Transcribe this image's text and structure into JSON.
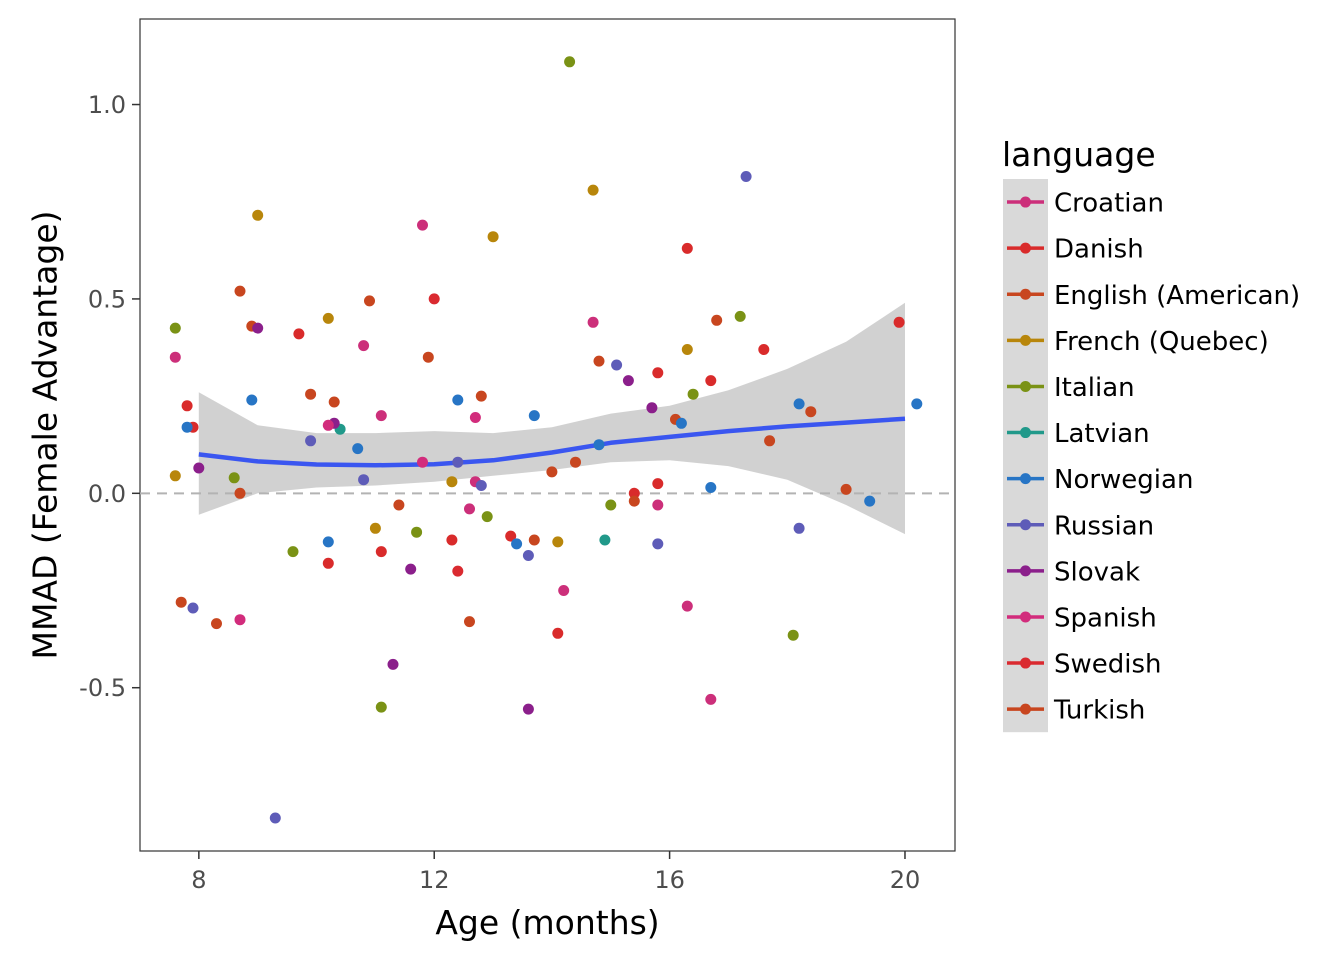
{
  "chart_data": {
    "type": "scatter",
    "xlabel": "Age (months)",
    "ylabel": "MMAD (Female Advantage)",
    "xlim": [
      7.0,
      20.85
    ],
    "ylim": [
      -0.92,
      1.22
    ],
    "x_ticks": [
      8,
      12,
      16,
      20
    ],
    "x_tick_labels": [
      "8",
      "12",
      "16",
      "20"
    ],
    "y_ticks": [
      -0.5,
      0.0,
      0.5,
      1.0
    ],
    "y_tick_labels": [
      "-0.5",
      "0.0",
      "0.5",
      "1.0"
    ],
    "grid": false,
    "reference_line": {
      "y": 0,
      "style": "dashed",
      "color": "#b3b3b3"
    },
    "legend": {
      "title": "language",
      "placement": "right",
      "entries": [
        {
          "name": "Croatian",
          "color": "#CC2F7A"
        },
        {
          "name": "Danish",
          "color": "#D92B2B"
        },
        {
          "name": "English (American)",
          "color": "#C8461F"
        },
        {
          "name": "French (Quebec)",
          "color": "#B8860B"
        },
        {
          "name": "Italian",
          "color": "#7A9215"
        },
        {
          "name": "Latvian",
          "color": "#21998A"
        },
        {
          "name": "Norwegian",
          "color": "#2775C5"
        },
        {
          "name": "Russian",
          "color": "#5E5CB8"
        },
        {
          "name": "Slovak",
          "color": "#8B1F8B"
        },
        {
          "name": "Spanish",
          "color": "#D22C7C"
        },
        {
          "name": "Swedish",
          "color": "#DA2A30"
        },
        {
          "name": "Turkish",
          "color": "#C8461F"
        }
      ]
    },
    "smooth": {
      "x": [
        8,
        9,
        10,
        11,
        12,
        13,
        14,
        15,
        16,
        17,
        18,
        19,
        20
      ],
      "y": [
        0.1,
        0.082,
        0.074,
        0.072,
        0.075,
        0.085,
        0.105,
        0.13,
        0.145,
        0.16,
        0.172,
        0.182,
        0.192
      ],
      "ci_lower": [
        -0.055,
        0.0,
        0.015,
        0.02,
        0.03,
        0.045,
        0.06,
        0.08,
        0.085,
        0.07,
        0.035,
        -0.03,
        -0.105
      ],
      "ci_upper": [
        0.26,
        0.175,
        0.155,
        0.155,
        0.16,
        0.155,
        0.17,
        0.205,
        0.225,
        0.265,
        0.32,
        0.39,
        0.49
      ],
      "line_color": "#3A56F0",
      "band_color": "#cccccc"
    },
    "series": [
      {
        "name": "Croatian",
        "color": "#CC2F7A",
        "points": [
          [
            7.6,
            0.35
          ],
          [
            10.8,
            0.38
          ],
          [
            11.1,
            0.2
          ],
          [
            11.8,
            0.69
          ],
          [
            12.6,
            -0.04
          ],
          [
            14.2,
            -0.25
          ],
          [
            14.7,
            0.44
          ],
          [
            15.8,
            -0.03
          ],
          [
            16.3,
            -0.29
          ],
          [
            16.7,
            -0.53
          ],
          [
            12.7,
            0.03
          ]
        ]
      },
      {
        "name": "Danish",
        "color": "#D92B2B",
        "points": [
          [
            7.8,
            0.225
          ],
          [
            7.9,
            0.17
          ],
          [
            9.7,
            0.41
          ],
          [
            10.2,
            -0.18
          ],
          [
            11.1,
            -0.15
          ],
          [
            12.3,
            -0.12
          ],
          [
            13.3,
            -0.11
          ],
          [
            14.1,
            -0.36
          ],
          [
            15.4,
            0.0
          ],
          [
            15.8,
            0.025
          ],
          [
            16.3,
            0.63
          ],
          [
            16.7,
            0.29
          ],
          [
            17.6,
            0.37
          ],
          [
            19.9,
            0.44
          ],
          [
            15.8,
            0.31
          ]
        ]
      },
      {
        "name": "English (American)",
        "color": "#C8461F",
        "points": [
          [
            7.7,
            -0.28
          ],
          [
            8.3,
            -0.335
          ],
          [
            8.7,
            0.52
          ],
          [
            8.9,
            0.43
          ],
          [
            10.3,
            0.235
          ],
          [
            10.9,
            0.495
          ],
          [
            11.4,
            -0.03
          ],
          [
            11.9,
            0.35
          ],
          [
            12.6,
            -0.33
          ],
          [
            12.8,
            0.25
          ],
          [
            13.7,
            -0.12
          ],
          [
            14.4,
            0.08
          ],
          [
            14.8,
            0.34
          ],
          [
            15.4,
            -0.02
          ],
          [
            16.1,
            0.19
          ],
          [
            16.8,
            0.445
          ],
          [
            18.4,
            0.21
          ],
          [
            14.0,
            0.055
          ]
        ]
      },
      {
        "name": "French (Quebec)",
        "color": "#B8860B",
        "points": [
          [
            7.6,
            0.045
          ],
          [
            9.0,
            0.715
          ],
          [
            10.2,
            0.45
          ],
          [
            11.0,
            -0.09
          ],
          [
            12.3,
            0.03
          ],
          [
            13.0,
            0.66
          ],
          [
            14.1,
            -0.125
          ],
          [
            14.7,
            0.78
          ],
          [
            16.3,
            0.37
          ]
        ]
      },
      {
        "name": "Italian",
        "color": "#7A9215",
        "points": [
          [
            7.6,
            0.425
          ],
          [
            8.6,
            0.04
          ],
          [
            9.6,
            -0.15
          ],
          [
            11.1,
            -0.55
          ],
          [
            11.7,
            -0.1
          ],
          [
            12.9,
            -0.06
          ],
          [
            14.3,
            1.11
          ],
          [
            15.0,
            -0.03
          ],
          [
            16.4,
            0.255
          ],
          [
            17.2,
            0.455
          ],
          [
            18.1,
            -0.365
          ]
        ]
      },
      {
        "name": "Latvian",
        "color": "#21998A",
        "points": [
          [
            10.4,
            0.165
          ],
          [
            14.9,
            -0.12
          ]
        ]
      },
      {
        "name": "Norwegian",
        "color": "#2775C5",
        "points": [
          [
            7.8,
            0.17
          ],
          [
            8.9,
            0.24
          ],
          [
            10.2,
            -0.125
          ],
          [
            10.7,
            0.115
          ],
          [
            12.4,
            0.24
          ],
          [
            13.4,
            -0.13
          ],
          [
            13.7,
            0.2
          ],
          [
            14.8,
            0.125
          ],
          [
            16.2,
            0.18
          ],
          [
            16.7,
            0.015
          ],
          [
            18.2,
            0.23
          ],
          [
            19.4,
            -0.02
          ],
          [
            20.2,
            0.23
          ]
        ]
      },
      {
        "name": "Russian",
        "color": "#5E5CB8",
        "points": [
          [
            7.9,
            -0.295
          ],
          [
            9.3,
            -0.835
          ],
          [
            9.9,
            0.135
          ],
          [
            10.8,
            0.035
          ],
          [
            12.4,
            0.08
          ],
          [
            12.8,
            0.02
          ],
          [
            13.6,
            -0.16
          ],
          [
            15.1,
            0.33
          ],
          [
            15.8,
            -0.13
          ],
          [
            17.3,
            0.815
          ],
          [
            18.2,
            -0.09
          ]
        ]
      },
      {
        "name": "Slovak",
        "color": "#8B1F8B",
        "points": [
          [
            8.0,
            0.065
          ],
          [
            9.0,
            0.425
          ],
          [
            10.3,
            0.18
          ],
          [
            11.3,
            -0.44
          ],
          [
            11.6,
            -0.195
          ],
          [
            13.6,
            -0.555
          ],
          [
            15.3,
            0.29
          ],
          [
            15.7,
            0.22
          ]
        ]
      },
      {
        "name": "Spanish",
        "color": "#D22C7C",
        "points": [
          [
            8.7,
            -0.325
          ],
          [
            10.2,
            0.175
          ],
          [
            11.8,
            0.08
          ],
          [
            12.7,
            0.195
          ]
        ]
      },
      {
        "name": "Swedish",
        "color": "#DA2A30",
        "points": [
          [
            12.0,
            0.5
          ],
          [
            12.4,
            -0.2
          ]
        ]
      },
      {
        "name": "Turkish",
        "color": "#C8461F",
        "points": [
          [
            9.9,
            0.255
          ],
          [
            8.7,
            0.0
          ],
          [
            17.7,
            0.135
          ],
          [
            19.0,
            0.01
          ]
        ]
      }
    ]
  }
}
